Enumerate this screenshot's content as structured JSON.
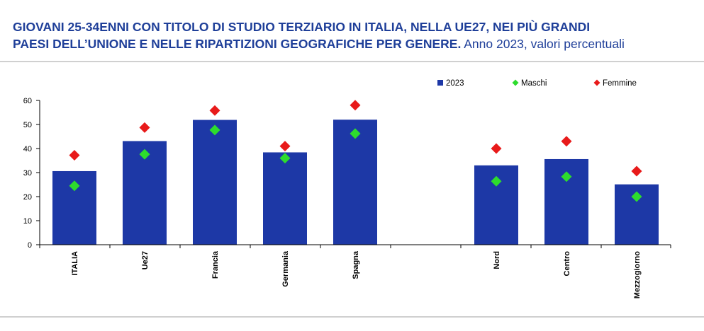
{
  "title": {
    "line1": "GIOVANI 25-34ENNI CON TITOLO DI STUDIO TERZIARIO IN ITALIA, NELLA UE27, NEI PIÙ GRANDI",
    "line2_bold": "PAESI DELL’UNIONE E NELLE RIPARTIZIONI GEOGRAFICHE PER GENERE.",
    "line2_normal": " Anno 2023, valori percentuali"
  },
  "colors": {
    "title": "#1f3f99",
    "bar": "#1d38a6",
    "maschi": "#2ddc2d",
    "femmine": "#e81a1a",
    "axis": "#000000"
  },
  "chart_data": {
    "type": "bar",
    "categories": [
      "ITALIA",
      "Ue27",
      "Francia",
      "Germania",
      "Spagna",
      "Nord",
      "Centro",
      "Mezzogiorno"
    ],
    "series": [
      {
        "name": "2023",
        "kind": "bar",
        "values": [
          30.6,
          43.1,
          51.9,
          38.4,
          52.0,
          33.0,
          35.6,
          25.1
        ]
      },
      {
        "name": "Maschi",
        "kind": "marker",
        "values": [
          24.5,
          37.6,
          47.7,
          36.0,
          46.2,
          26.4,
          28.3,
          20.0
        ]
      },
      {
        "name": "Femmine",
        "kind": "marker",
        "values": [
          37.2,
          48.7,
          55.8,
          41.0,
          58.0,
          40.0,
          43.0,
          30.6
        ]
      }
    ],
    "yticks": [
      "0",
      "10",
      "20",
      "30",
      "40",
      "50",
      "60"
    ],
    "ylim": [
      0,
      60
    ],
    "grid": false,
    "legend_position": "top-right"
  }
}
